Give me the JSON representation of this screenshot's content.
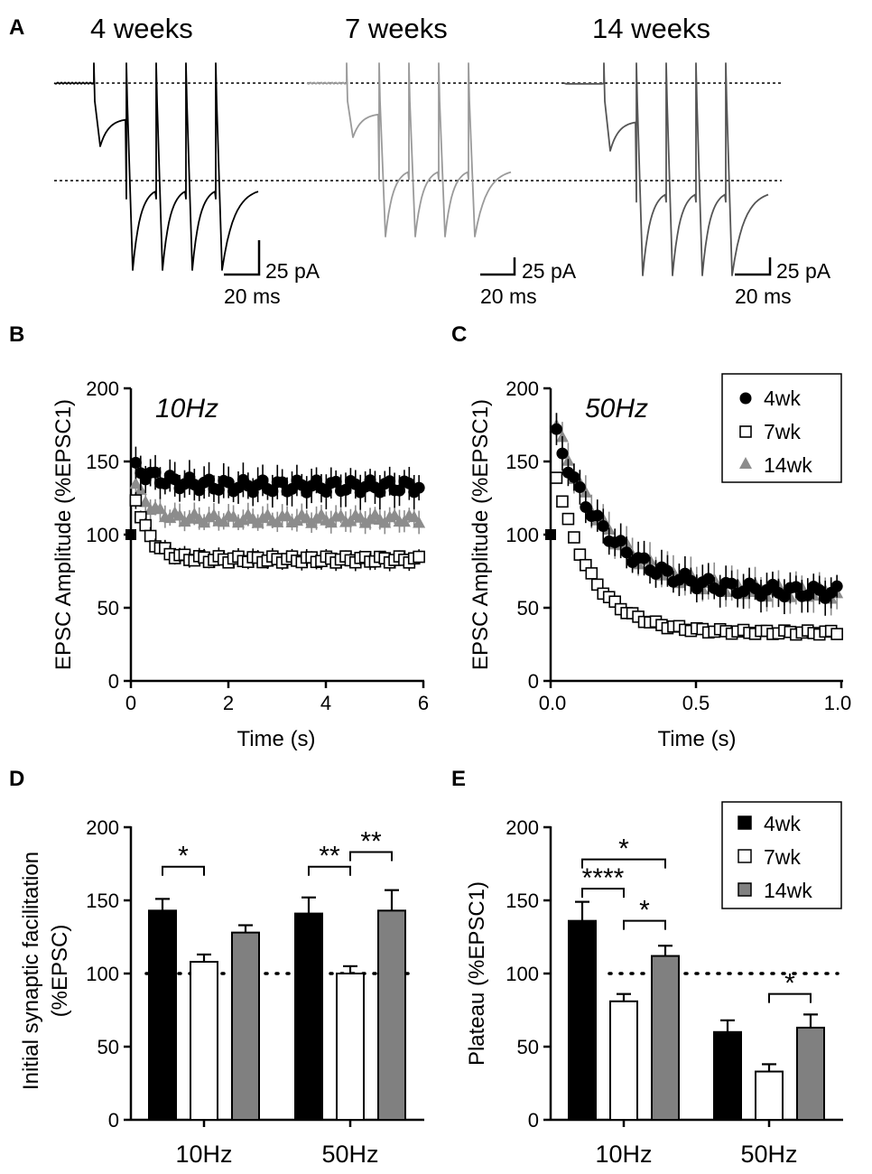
{
  "chart_data": {
    "panelA": {
      "panel_label": "A",
      "groups": [
        {
          "title": "4 weeks",
          "color": "#000000",
          "peak_a": 70,
          "peak_b": 207,
          "scale_y": "25 pA",
          "scale_x": "20 ms"
        },
        {
          "title": "7 weeks",
          "color": "#9a9a9a",
          "peak_a": 60,
          "peak_b": 170,
          "scale_y": "25 pA",
          "scale_x": "20 ms"
        },
        {
          "title": "14 weeks",
          "color": "#555555",
          "peak_a": 75,
          "peak_b": 213,
          "scale_y": "25 pA",
          "scale_x": "20 ms"
        }
      ]
    },
    "panelB": {
      "type": "scatter",
      "panel_label": "B",
      "annotation": "10Hz",
      "xlabel": "Time (s)",
      "ylabel": "EPSC Amplitude (%EPSC1)",
      "xlim": [
        0,
        6
      ],
      "ylim": [
        0,
        200
      ],
      "xticks": [
        "0",
        "2",
        "4",
        "6"
      ],
      "yticks": [
        "0",
        "50",
        "100",
        "150",
        "200"
      ],
      "n_points": 60,
      "series": [
        {
          "name": "4wk",
          "marker": "circle",
          "start": 100,
          "peak": 145,
          "plateau": 133,
          "tau": 0.6,
          "err": 12
        },
        {
          "name": "7wk",
          "marker": "square",
          "start": 100,
          "peak": 125,
          "plateau": 83,
          "tau": 0.3,
          "err": 6
        },
        {
          "name": "14wk",
          "marker": "triangle",
          "start": 100,
          "peak": 135,
          "plateau": 111,
          "tau": 0.3,
          "err": 8
        }
      ]
    },
    "panelC": {
      "type": "scatter",
      "panel_label": "C",
      "annotation": "50Hz",
      "xlabel": "Time (s)",
      "ylabel": "EPSC Amplitude (%EPSC1)",
      "xlim": [
        0,
        1
      ],
      "ylim": [
        0,
        200
      ],
      "xticks": [
        "0.0",
        "0.5",
        "1.0"
      ],
      "yticks": [
        "0",
        "50",
        "100",
        "150",
        "200"
      ],
      "n_points": 50,
      "legend": [
        "4wk",
        "7wk",
        "14wk"
      ],
      "series": [
        {
          "name": "4wk",
          "marker": "circle",
          "start": 100,
          "peak": 168,
          "plateau": 60,
          "tau": 0.18,
          "err": 12
        },
        {
          "name": "7wk",
          "marker": "square",
          "start": 100,
          "peak": 140,
          "plateau": 33,
          "tau": 0.12,
          "err": 4
        },
        {
          "name": "14wk",
          "marker": "triangle",
          "start": 100,
          "peak": 175,
          "plateau": 60,
          "tau": 0.18,
          "err": 12
        }
      ]
    },
    "panelD": {
      "type": "bar",
      "panel_label": "D",
      "ylabel_line1": "Initial synaptic facilitation",
      "ylabel_line2": "(%EPSC)",
      "ylim": [
        0,
        200
      ],
      "yticks": [
        "0",
        "50",
        "100",
        "150",
        "200"
      ],
      "reference_line": 100,
      "categories": [
        "10Hz",
        "50Hz"
      ],
      "series": [
        {
          "name": "4wk",
          "values": [
            143,
            141
          ],
          "errors": [
            8,
            11
          ]
        },
        {
          "name": "7wk",
          "values": [
            108,
            100
          ],
          "errors": [
            5,
            5
          ]
        },
        {
          "name": "14wk",
          "values": [
            128,
            143
          ],
          "errors": [
            5,
            14
          ]
        }
      ],
      "significance": [
        {
          "group": 0,
          "from": 0,
          "to": 1,
          "y": 173,
          "label": "*"
        },
        {
          "group": 1,
          "from": 0,
          "to": 1,
          "y": 173,
          "label": "**"
        },
        {
          "group": 1,
          "from": 1,
          "to": 2,
          "y": 183,
          "label": "**"
        }
      ]
    },
    "panelE": {
      "type": "bar",
      "panel_label": "E",
      "ylabel": "Plateau (%EPSC1)",
      "ylim": [
        0,
        200
      ],
      "yticks": [
        "0",
        "50",
        "100",
        "150",
        "200"
      ],
      "reference_line": 100,
      "categories": [
        "10Hz",
        "50Hz"
      ],
      "legend": [
        "4wk",
        "7wk",
        "14wk"
      ],
      "series": [
        {
          "name": "4wk",
          "values": [
            136,
            60
          ],
          "errors": [
            13,
            8
          ]
        },
        {
          "name": "7wk",
          "values": [
            81,
            33
          ],
          "errors": [
            5,
            5
          ]
        },
        {
          "name": "14wk",
          "values": [
            112,
            63
          ],
          "errors": [
            7,
            9
          ]
        }
      ],
      "significance": [
        {
          "group": 0,
          "from": 0,
          "to": 2,
          "y": 178,
          "label": "*"
        },
        {
          "group": 0,
          "from": 0,
          "to": 1,
          "y": 158,
          "label": "****"
        },
        {
          "group": 0,
          "from": 1,
          "to": 2,
          "y": 136,
          "label": "*"
        },
        {
          "group": 1,
          "from": 1,
          "to": 2,
          "y": 86,
          "label": "*"
        }
      ]
    }
  },
  "colors": {
    "wk4": "#000000",
    "wk7": "#ffffff",
    "wk14": "#808080",
    "tri": "#8c8c8c"
  }
}
